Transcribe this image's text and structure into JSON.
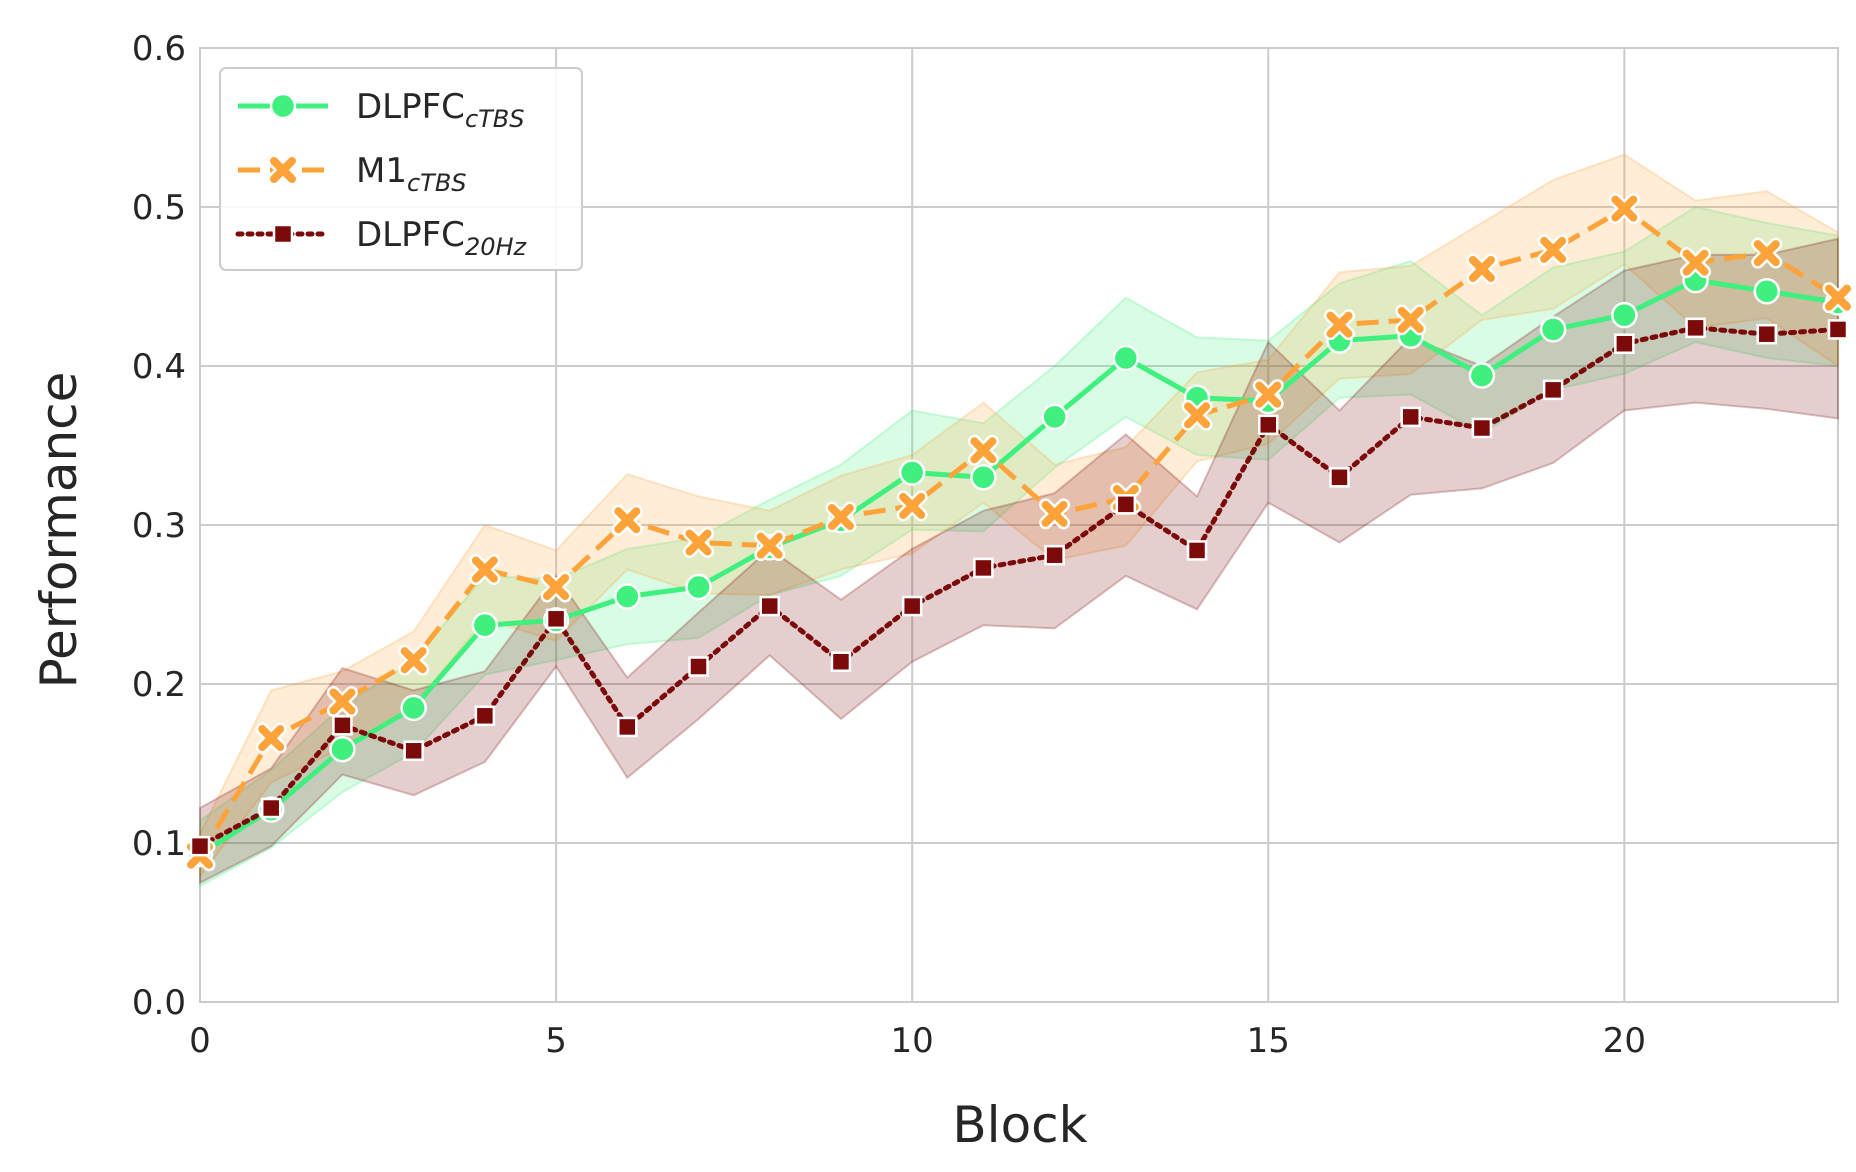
{
  "chart_data": {
    "type": "line",
    "xlabel": "Block",
    "ylabel": "Performance",
    "xlim": [
      0,
      23
    ],
    "ylim": [
      0.0,
      0.6
    ],
    "x_ticks": [
      0,
      5,
      10,
      15,
      20
    ],
    "x_tick_labels": [
      "0",
      "5",
      "10",
      "15",
      "20"
    ],
    "y_ticks": [
      0.0,
      0.1,
      0.2,
      0.3,
      0.4,
      0.5,
      0.6
    ],
    "y_tick_labels": [
      "0.0",
      "0.1",
      "0.2",
      "0.3",
      "0.4",
      "0.5",
      "0.6"
    ],
    "grid": true,
    "legend_position": "top-left",
    "x": [
      0,
      1,
      2,
      3,
      4,
      5,
      6,
      7,
      8,
      9,
      10,
      11,
      12,
      13,
      14,
      15,
      16,
      17,
      18,
      19,
      20,
      21,
      22,
      23
    ],
    "series": [
      {
        "name": "DLPFC",
        "name_sub": "cTBS",
        "color": "#3ff07f",
        "line_style": "solid",
        "marker": "circle",
        "values": [
          0.093,
          0.121,
          0.159,
          0.185,
          0.237,
          0.24,
          0.255,
          0.261,
          0.286,
          0.303,
          0.333,
          0.33,
          0.368,
          0.405,
          0.38,
          0.378,
          0.416,
          0.419,
          0.394,
          0.423,
          0.432,
          0.454,
          0.447,
          0.44
        ],
        "ci_low": [
          0.073,
          0.097,
          0.132,
          0.157,
          0.206,
          0.215,
          0.225,
          0.229,
          0.256,
          0.268,
          0.297,
          0.296,
          0.336,
          0.368,
          0.344,
          0.341,
          0.38,
          0.382,
          0.358,
          0.385,
          0.395,
          0.415,
          0.405,
          0.4
        ],
        "ci_high": [
          0.114,
          0.146,
          0.186,
          0.215,
          0.268,
          0.266,
          0.285,
          0.292,
          0.316,
          0.338,
          0.372,
          0.364,
          0.4,
          0.443,
          0.418,
          0.416,
          0.452,
          0.466,
          0.432,
          0.462,
          0.472,
          0.5,
          0.49,
          0.482
        ]
      },
      {
        "name": "M1",
        "name_sub": "cTBS",
        "color": "#fda33a",
        "line_style": "dashed",
        "marker": "x",
        "values": [
          0.092,
          0.166,
          0.189,
          0.215,
          0.272,
          0.261,
          0.303,
          0.289,
          0.287,
          0.305,
          0.312,
          0.347,
          0.307,
          0.317,
          0.369,
          0.382,
          0.426,
          0.429,
          0.461,
          0.473,
          0.499,
          0.465,
          0.471,
          0.443
        ],
        "ci_low": [
          0.079,
          0.138,
          0.16,
          0.186,
          0.241,
          0.227,
          0.272,
          0.257,
          0.256,
          0.272,
          0.282,
          0.314,
          0.278,
          0.287,
          0.34,
          0.351,
          0.392,
          0.395,
          0.429,
          0.436,
          0.464,
          0.424,
          0.43,
          0.4
        ],
        "ci_high": [
          0.106,
          0.196,
          0.208,
          0.233,
          0.3,
          0.284,
          0.332,
          0.318,
          0.309,
          0.331,
          0.344,
          0.377,
          0.338,
          0.349,
          0.396,
          0.404,
          0.459,
          0.463,
          0.49,
          0.517,
          0.533,
          0.504,
          0.51,
          0.484
        ]
      },
      {
        "name": "DLPFC",
        "name_sub": "20Hz",
        "color": "#7b0a0a",
        "line_style": "dotted",
        "marker": "square",
        "values": [
          0.098,
          0.122,
          0.174,
          0.158,
          0.18,
          0.241,
          0.173,
          0.211,
          0.249,
          0.214,
          0.249,
          0.273,
          0.281,
          0.313,
          0.284,
          0.363,
          0.33,
          0.368,
          0.361,
          0.385,
          0.414,
          0.424,
          0.42,
          0.423
        ],
        "ci_low": [
          0.075,
          0.098,
          0.143,
          0.13,
          0.151,
          0.211,
          0.141,
          0.178,
          0.218,
          0.178,
          0.214,
          0.237,
          0.235,
          0.268,
          0.247,
          0.314,
          0.289,
          0.319,
          0.323,
          0.339,
          0.372,
          0.377,
          0.373,
          0.367
        ],
        "ci_high": [
          0.122,
          0.147,
          0.21,
          0.196,
          0.208,
          0.268,
          0.204,
          0.245,
          0.285,
          0.253,
          0.285,
          0.309,
          0.32,
          0.357,
          0.318,
          0.415,
          0.372,
          0.418,
          0.4,
          0.431,
          0.46,
          0.47,
          0.47,
          0.48
        ]
      }
    ]
  }
}
